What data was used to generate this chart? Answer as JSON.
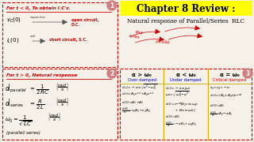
{
  "bg_color": "#f5f0e8",
  "title": "Chapter 8 Review :",
  "title_bg": "#ffff00",
  "subtitle": "Natural response of Parallel/Series  RLC",
  "box1_title": "For t < 0, To obtain I.C's.",
  "box2_title": "For t > 0, Natural response",
  "box3_headers": [
    "α > ω₀",
    "α < ω₀",
    "α = ω₀"
  ],
  "box3_sub": [
    "Over damped",
    "Under damped",
    "Critical damped"
  ],
  "circle_color": "#d08080",
  "dashed_color": "#cc0000",
  "annotation_color": "#cc0000",
  "yellow": "#ffff00",
  "gold": "#ccaa00",
  "blue": "#0000cc"
}
